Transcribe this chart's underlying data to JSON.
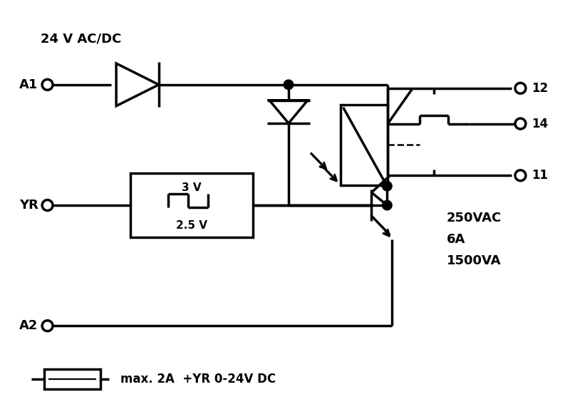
{
  "bg": "#ffffff",
  "lc": "#000000",
  "lw": 2.5,
  "figsize": [
    8.0,
    5.88
  ],
  "dpi": 100,
  "label_24V": "24 V AC/DC",
  "label_A1": "A1",
  "label_A2": "A2",
  "label_YR": "YR",
  "label_12": "12",
  "label_14": "14",
  "label_11": "11",
  "label_spec1": "250VAC",
  "label_spec2": "6A",
  "label_spec3": "1500VA",
  "label_fuse": "max. 2A  +YR 0-24V DC",
  "label_3V": "3 V",
  "label_25V": "2.5 V",
  "xlim": [
    0,
    8
  ],
  "ylim": [
    0,
    5.88
  ],
  "dot_r": 0.068,
  "oc_r": 0.075
}
